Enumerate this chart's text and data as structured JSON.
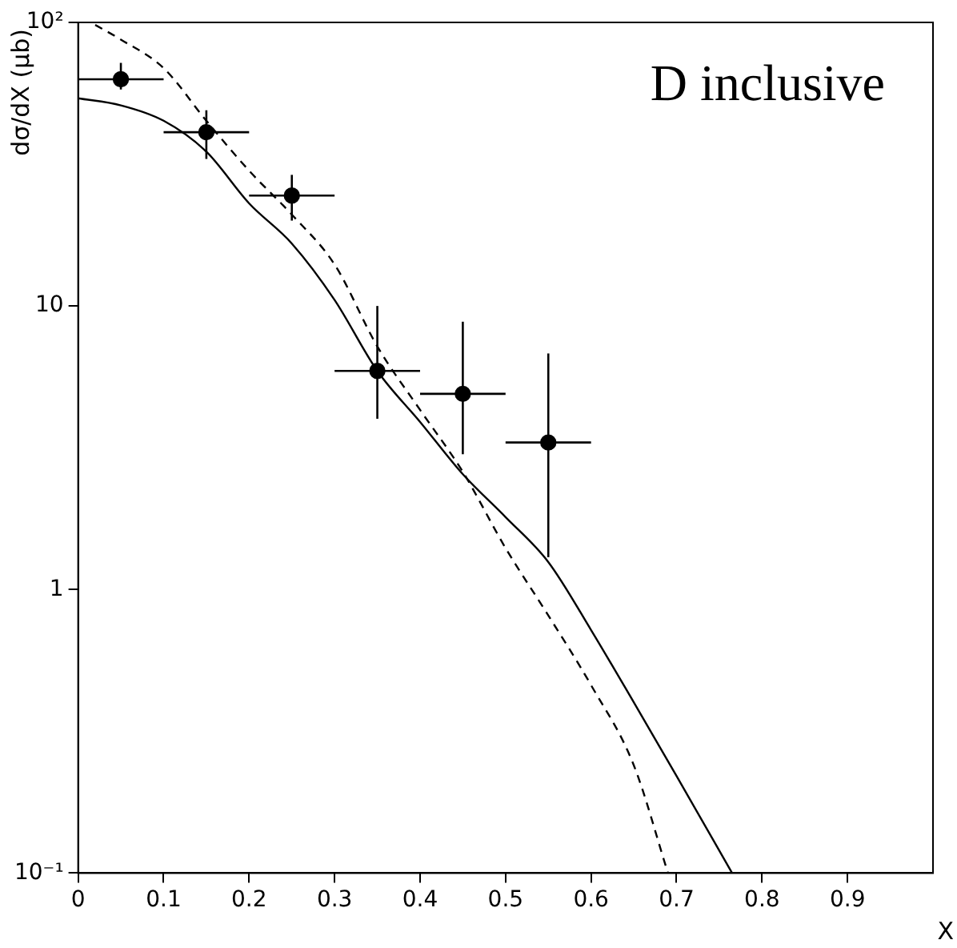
{
  "chart_data": {
    "type": "scatter",
    "xlabel": "X",
    "ylabel": "dσ/dX (μb)",
    "annotations": [
      "D inclusive"
    ],
    "log": "y",
    "grid": false,
    "legend": false,
    "xlim": [
      0,
      1
    ],
    "xticks": [
      0,
      0.1,
      0.2,
      0.3,
      0.4,
      0.5,
      0.6,
      0.7,
      0.8,
      0.9
    ],
    "ylim": [
      0.1,
      100
    ],
    "yticks": [
      {
        "value": 100,
        "label": "10²"
      },
      10,
      1,
      {
        "value": 0.1,
        "label": "10⁻¹"
      }
    ],
    "series": [
      {
        "color": "#000000",
        "marker": "circle",
        "x": [
          0.05,
          0.15,
          0.25,
          0.35,
          0.45,
          0.55
        ],
        "values": [
          63,
          41,
          24.5,
          5.9,
          4.9,
          3.3
        ],
        "errors": [
          [
            58,
            72
          ],
          [
            33,
            49
          ],
          [
            20,
            29
          ],
          [
            4.0,
            10
          ],
          [
            3.0,
            8.8
          ],
          [
            1.3,
            6.8
          ]
        ],
        "xerrors": [
          0.05,
          0.05,
          0.05,
          0.05,
          0.05,
          0.05
        ]
      },
      {
        "type": "line",
        "color": "#000000",
        "marker": "none",
        "line_style": "solid",
        "x": [
          0,
          0.05,
          0.1,
          0.15,
          0.2,
          0.25,
          0.3,
          0.35,
          0.4,
          0.45,
          0.5,
          0.55,
          0.6,
          0.65,
          0.7,
          0.765
        ],
        "values": [
          54,
          51,
          45,
          35,
          23,
          16.6,
          10.5,
          5.9,
          3.9,
          2.55,
          1.8,
          1.25,
          0.72,
          0.4,
          0.22,
          0.1
        ]
      },
      {
        "type": "line",
        "color": "#000000",
        "marker": "none",
        "line_style": "dashed",
        "x": [
          0.02,
          0.05,
          0.1,
          0.15,
          0.2,
          0.25,
          0.3,
          0.35,
          0.4,
          0.45,
          0.5,
          0.55,
          0.6,
          0.65,
          0.69
        ],
        "values": [
          98,
          87,
          69,
          45,
          30,
          21,
          14,
          7.2,
          4.3,
          2.6,
          1.4,
          0.81,
          0.46,
          0.24,
          0.1
        ]
      }
    ]
  }
}
